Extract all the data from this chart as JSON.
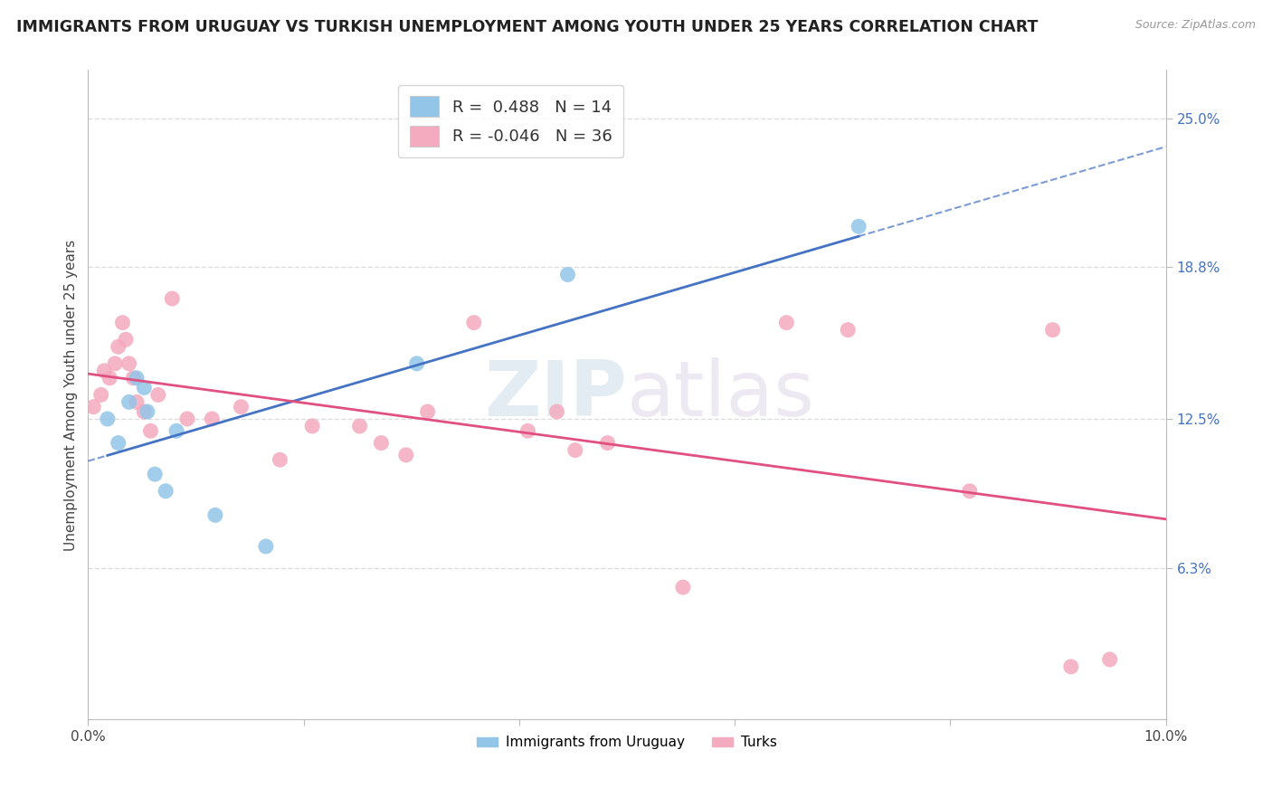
{
  "title": "IMMIGRANTS FROM URUGUAY VS TURKISH UNEMPLOYMENT AMONG YOUTH UNDER 25 YEARS CORRELATION CHART",
  "source": "Source: ZipAtlas.com",
  "ylabel": "Unemployment Among Youth under 25 years",
  "xlim": [
    0.0,
    10.0
  ],
  "ylim": [
    0.0,
    27.0
  ],
  "x_ticks": [
    0.0,
    2.0,
    4.0,
    6.0,
    8.0,
    10.0
  ],
  "x_tick_labels": [
    "0.0%",
    "",
    "",
    "",
    "",
    "10.0%"
  ],
  "y_tick_values": [
    6.3,
    12.5,
    18.8,
    25.0
  ],
  "y_tick_labels": [
    "6.3%",
    "12.5%",
    "18.8%",
    "25.0%"
  ],
  "legend_labels_bottom": [
    "Immigrants from Uruguay",
    "Turks"
  ],
  "r_uruguay": "0.488",
  "n_uruguay": 14,
  "r_turks": "-0.046",
  "n_turks": 36,
  "color_uruguay": "#92C5E8",
  "color_turks": "#F4AABF",
  "trendline_color_uruguay": "#4472C4",
  "trendline_color_turks": "#E05080",
  "watermark_part1": "ZIP",
  "watermark_part2": "atlas",
  "background_color": "#FFFFFF",
  "grid_color": "#DDDDDD",
  "uruguay_x": [
    0.18,
    0.28,
    0.38,
    0.45,
    0.52,
    0.55,
    0.62,
    0.72,
    0.82,
    1.18,
    1.65,
    3.05,
    4.45,
    7.15
  ],
  "uruguay_y": [
    12.5,
    11.5,
    13.2,
    14.2,
    13.8,
    12.8,
    10.2,
    9.5,
    12.0,
    8.5,
    7.2,
    14.8,
    18.5,
    20.5
  ],
  "turks_x": [
    0.05,
    0.12,
    0.15,
    0.2,
    0.25,
    0.28,
    0.32,
    0.35,
    0.38,
    0.42,
    0.45,
    0.52,
    0.58,
    0.65,
    0.78,
    0.92,
    1.15,
    1.42,
    1.78,
    2.08,
    2.52,
    2.72,
    2.95,
    3.15,
    3.58,
    4.08,
    4.35,
    4.52,
    4.82,
    5.52,
    6.48,
    7.05,
    8.18,
    8.95,
    9.12,
    9.48
  ],
  "turks_y": [
    13.0,
    13.5,
    14.5,
    14.2,
    14.8,
    15.5,
    16.5,
    15.8,
    14.8,
    14.2,
    13.2,
    12.8,
    12.0,
    13.5,
    17.5,
    12.5,
    12.5,
    13.0,
    10.8,
    12.2,
    12.2,
    11.5,
    11.0,
    12.8,
    16.5,
    12.0,
    12.8,
    11.2,
    11.5,
    5.5,
    16.5,
    16.2,
    9.5,
    16.2,
    2.2,
    2.5
  ]
}
